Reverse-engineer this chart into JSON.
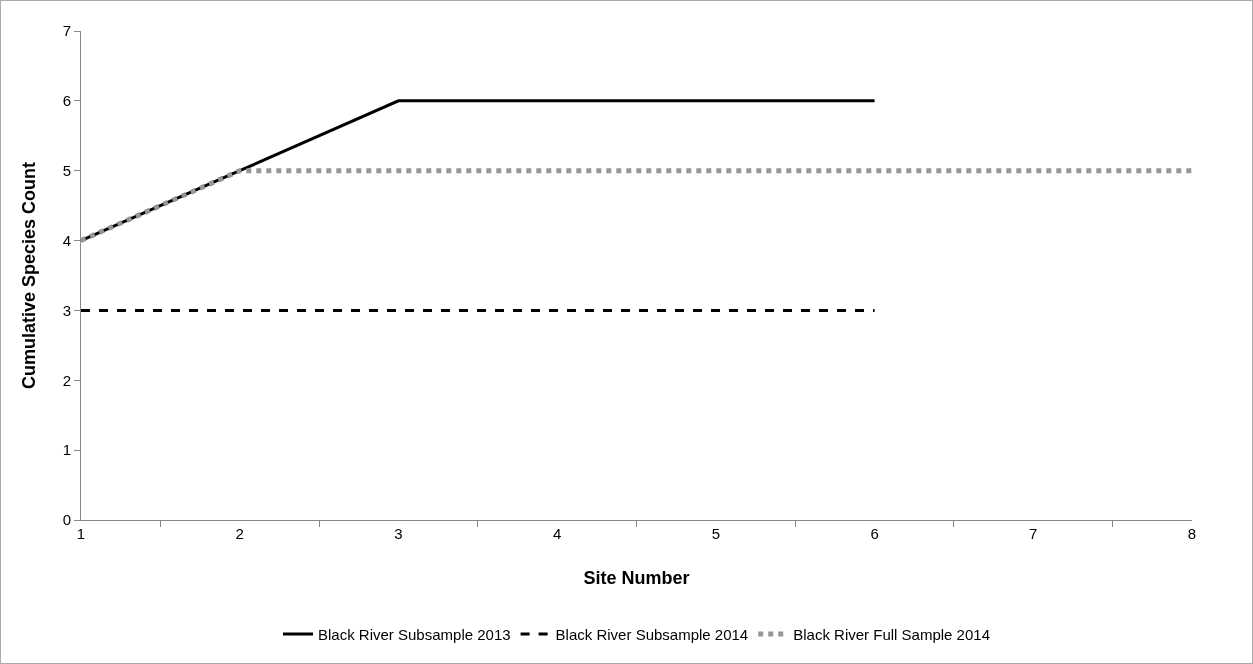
{
  "chart_data": {
    "type": "line",
    "xlabel": "Site Number",
    "ylabel": "Cumulative Species Count",
    "categories": [
      "1",
      "2",
      "3",
      "4",
      "5",
      "6",
      "7",
      "8"
    ],
    "series": [
      {
        "name": "Black River Subsample 2013",
        "color": "#000000",
        "line_style": "solid",
        "values": [
          4,
          5,
          6,
          6,
          6,
          6,
          null,
          null
        ]
      },
      {
        "name": "Black River Subsample 2014",
        "color": "#000000",
        "line_style": "dashed",
        "values": [
          3,
          3,
          3,
          3,
          3,
          3,
          null,
          null
        ]
      },
      {
        "name": "Black River Full Sample 2014",
        "color": "#969696",
        "line_style": "dotted",
        "values": [
          4,
          5,
          5,
          5,
          5,
          5,
          5,
          5
        ]
      }
    ],
    "ylim": [
      0,
      7
    ],
    "yticks": [
      0,
      1,
      2,
      3,
      4,
      5,
      6,
      7
    ],
    "grid": false,
    "legend": "bottom",
    "marker": "none"
  }
}
